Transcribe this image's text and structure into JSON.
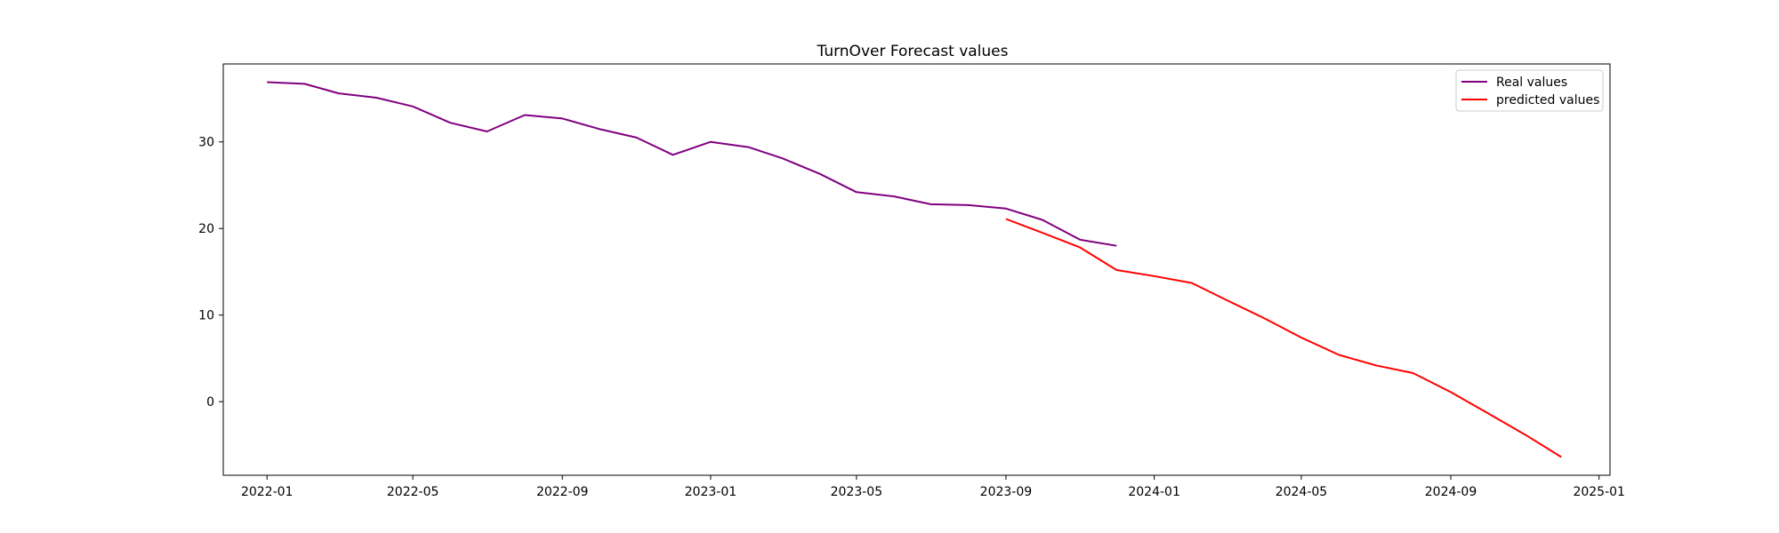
{
  "chart_data": {
    "type": "line",
    "title": "TurnOver Forecast values",
    "xlabel": "",
    "ylabel": "",
    "x_axis_type": "date",
    "xlim": [
      "2021-11-26",
      "2025-01-10"
    ],
    "ylim": [
      -8.5,
      39
    ],
    "x_ticks": [
      {
        "date": "2022-01-01",
        "label": "2022-01"
      },
      {
        "date": "2022-05-01",
        "label": "2022-05"
      },
      {
        "date": "2022-09-01",
        "label": "2022-09"
      },
      {
        "date": "2023-01-01",
        "label": "2023-01"
      },
      {
        "date": "2023-05-01",
        "label": "2023-05"
      },
      {
        "date": "2023-09-01",
        "label": "2023-09"
      },
      {
        "date": "2024-01-01",
        "label": "2024-01"
      },
      {
        "date": "2024-05-01",
        "label": "2024-05"
      },
      {
        "date": "2024-09-01",
        "label": "2024-09"
      },
      {
        "date": "2025-01-01",
        "label": "2025-01"
      }
    ],
    "y_ticks": [
      {
        "value": 0,
        "label": "0"
      },
      {
        "value": 10,
        "label": "10"
      },
      {
        "value": 20,
        "label": "20"
      },
      {
        "value": 30,
        "label": "30"
      }
    ],
    "grid": false,
    "legend_position": "top-right",
    "series": [
      {
        "name": "Real values",
        "color": "#800080",
        "points": [
          [
            "2022-01-01",
            36.9
          ],
          [
            "2022-02-01",
            36.7
          ],
          [
            "2022-03-01",
            35.6
          ],
          [
            "2022-04-01",
            35.1
          ],
          [
            "2022-05-01",
            34.1
          ],
          [
            "2022-06-01",
            32.2
          ],
          [
            "2022-07-01",
            31.2
          ],
          [
            "2022-08-01",
            33.1
          ],
          [
            "2022-09-01",
            32.7
          ],
          [
            "2022-10-01",
            31.5
          ],
          [
            "2022-11-01",
            30.5
          ],
          [
            "2022-12-01",
            28.5
          ],
          [
            "2023-01-01",
            30.0
          ],
          [
            "2023-02-01",
            29.4
          ],
          [
            "2023-03-01",
            28.1
          ],
          [
            "2023-04-01",
            26.3
          ],
          [
            "2023-05-01",
            24.2
          ],
          [
            "2023-06-01",
            23.7
          ],
          [
            "2023-07-01",
            22.8
          ],
          [
            "2023-08-01",
            22.7
          ],
          [
            "2023-09-01",
            22.3
          ],
          [
            "2023-10-01",
            21.0
          ],
          [
            "2023-11-01",
            18.7
          ],
          [
            "2023-12-01",
            18.0
          ]
        ]
      },
      {
        "name": "predicted values",
        "color": "#ff0000",
        "points": [
          [
            "2023-09-01",
            21.1
          ],
          [
            "2023-10-01",
            19.5
          ],
          [
            "2023-11-01",
            17.8
          ],
          [
            "2023-12-01",
            15.2
          ],
          [
            "2024-01-01",
            14.5
          ],
          [
            "2024-02-01",
            13.7
          ],
          [
            "2024-03-01",
            11.7
          ],
          [
            "2024-04-01",
            9.6
          ],
          [
            "2024-05-01",
            7.4
          ],
          [
            "2024-06-01",
            5.4
          ],
          [
            "2024-07-01",
            4.2
          ],
          [
            "2024-08-01",
            3.3
          ],
          [
            "2024-09-01",
            1.1
          ],
          [
            "2024-10-01",
            -1.3
          ],
          [
            "2024-11-01",
            -3.8
          ],
          [
            "2024-12-01",
            -6.4
          ]
        ]
      }
    ]
  }
}
